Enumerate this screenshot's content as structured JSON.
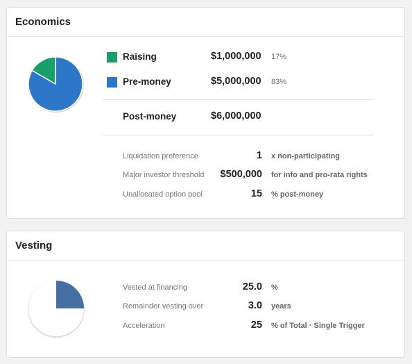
{
  "economics": {
    "title": "Economics",
    "raising": {
      "label": "Raising",
      "value": "$1,000,000",
      "pct": "17%",
      "color": "#1a9e6a"
    },
    "pre_money": {
      "label": "Pre-money",
      "value": "$5,000,000",
      "pct": "83%",
      "color": "#2d77c9"
    },
    "post_money": {
      "label": "Post-money",
      "value": "$6,000,000"
    },
    "terms": [
      {
        "label": "Liquidation preference",
        "value": "1",
        "unit": "x non-participating"
      },
      {
        "label": "Major investor threshold",
        "value": "$500,000",
        "unit": "for info and pro-rata rights"
      },
      {
        "label": "Unallocated option pool",
        "value": "15",
        "unit": "% post-money"
      }
    ],
    "pie": {
      "fractions": [
        0.1667,
        0.8333
      ],
      "colors": [
        "#1a9e6a",
        "#2d77c9"
      ]
    }
  },
  "vesting": {
    "title": "Vesting",
    "terms": [
      {
        "label": "Vested at financing",
        "value": "25.0",
        "unit": "%"
      },
      {
        "label": "Remainder vesting over",
        "value": "3.0",
        "unit": "years"
      },
      {
        "label": "Acceleration",
        "value": "25",
        "unit": "% of Total · Single Trigger"
      }
    ],
    "pie": {
      "vested_fraction": 0.25,
      "color": "#466fa6",
      "empty_color": "#ffffff"
    }
  }
}
